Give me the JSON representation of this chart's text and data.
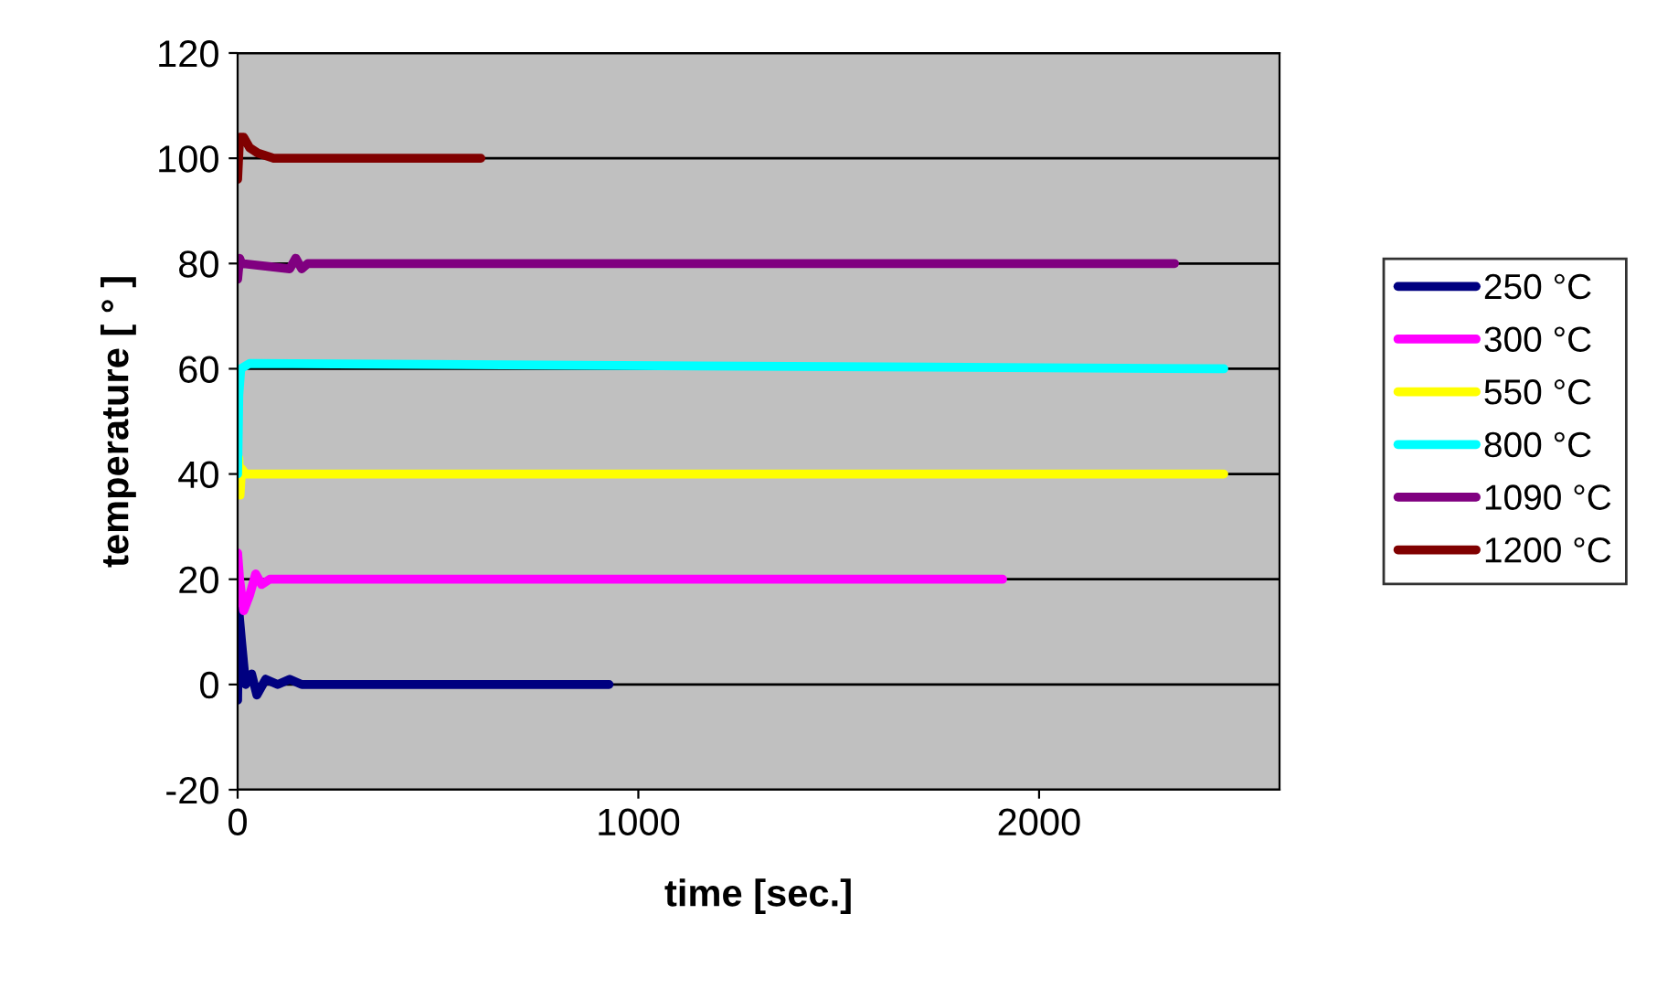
{
  "chart_data": {
    "type": "line",
    "xlabel": "time [sec.]",
    "ylabel": "temperature [ ° ]",
    "xlim": [
      0,
      2600
    ],
    "xticks": [
      0,
      1000,
      2000
    ],
    "ylim": [
      -20,
      120
    ],
    "yticks": [
      -20,
      0,
      20,
      40,
      60,
      80,
      100,
      120
    ],
    "grid": "y",
    "legend": "right",
    "line_style": "solid",
    "series": [
      {
        "name": "250 °C",
        "color": "#000080",
        "x": [
          0,
          3,
          10,
          20,
          35,
          48,
          70,
          100,
          130,
          160,
          927
        ],
        "values": [
          -3,
          14,
          8,
          0,
          2,
          -2,
          1,
          0,
          1,
          0,
          0
        ]
      },
      {
        "name": "300 °C",
        "color": "#ff00ff",
        "x": [
          0,
          5,
          15,
          30,
          45,
          60,
          80,
          1909
        ],
        "values": [
          25,
          20,
          14,
          17,
          21,
          19,
          20,
          20
        ]
      },
      {
        "name": "550 °C",
        "color": "#ffff00",
        "x": [
          0,
          3,
          6,
          10,
          20,
          2461
        ],
        "values": [
          37,
          43,
          36,
          41,
          40,
          40
        ]
      },
      {
        "name": "800 °C",
        "color": "#00ffff",
        "x": [
          0,
          3,
          8,
          30,
          2461
        ],
        "values": [
          40,
          55,
          60,
          61,
          60
        ]
      },
      {
        "name": "1090 °C",
        "color": "#800080",
        "x": [
          0,
          5,
          10,
          130,
          145,
          160,
          175,
          2338
        ],
        "values": [
          77,
          81,
          80,
          79,
          81,
          79,
          80,
          80
        ]
      },
      {
        "name": "1200 °C",
        "color": "#800000",
        "x": [
          0,
          5,
          15,
          30,
          50,
          90,
          607
        ],
        "values": [
          96,
          104,
          104,
          102,
          101,
          100,
          100
        ]
      }
    ]
  }
}
